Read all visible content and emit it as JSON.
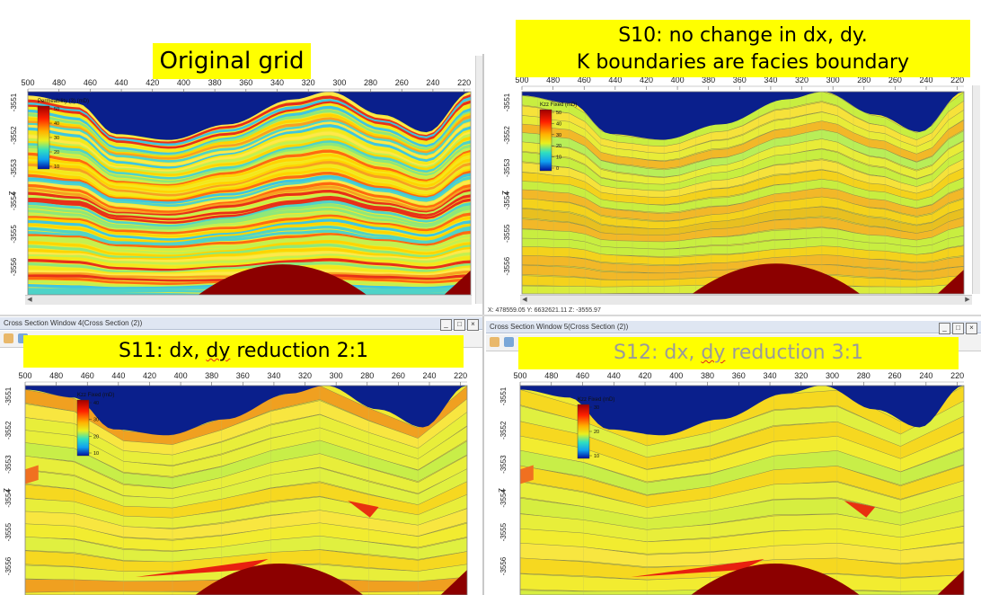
{
  "panels": [
    {
      "id": "p1",
      "title_lines": [
        "Original grid"
      ],
      "colorbar_label": "Permeability (3) (mD)",
      "colorbar_ticks": [
        "50",
        "40",
        "30",
        "20",
        "10"
      ],
      "style": "fine",
      "dome": true
    },
    {
      "id": "p2",
      "title_lines": [
        "S10: no change in dx, dy.",
        "K boundaries are facies boundary"
      ],
      "colorbar_label": "Kzz Fixed (mD)",
      "colorbar_ticks": [
        "50",
        "40",
        "30",
        "20",
        "10",
        "0"
      ],
      "style": "s10",
      "dome": true
    },
    {
      "id": "p3",
      "title_prefix": "S11: dx, ",
      "title_underlined": "dy",
      "title_suffix": " reduction 2:1",
      "colorbar_label": "Kzz Fixed (mD)",
      "colorbar_ticks": [
        "40",
        "30",
        "20",
        "10"
      ],
      "style": "s11",
      "dome": true
    },
    {
      "id": "p4",
      "title_prefix": "S12: dx, ",
      "title_underlined": "dy",
      "title_suffix": " reduction 3:1",
      "colorbar_label": "Kzz Fixed (mD)",
      "colorbar_ticks": [
        "30",
        "20",
        "10"
      ],
      "style": "s12",
      "dome": true
    }
  ],
  "x_ticks": [
    "500",
    "480",
    "460",
    "440",
    "420",
    "400",
    "380",
    "360",
    "340",
    "320",
    "300",
    "280",
    "260",
    "240",
    "220"
  ],
  "z_ticks": [
    "-3551",
    "-3552",
    "-3553",
    "-3554",
    "-3555",
    "-3556"
  ],
  "z_axis_label": "Z",
  "status_text": "X: 478559.05  Y: 6632621.11  Z: -3555.97",
  "windows": {
    "left_title": "Cross Section Window 4(Cross Section (2))",
    "right_title": "Cross Section Window 5(Cross Section (2))"
  },
  "colors": {
    "sky": "#0a1f8c",
    "dome": "#8c0000",
    "highlight": "#ffff00"
  }
}
